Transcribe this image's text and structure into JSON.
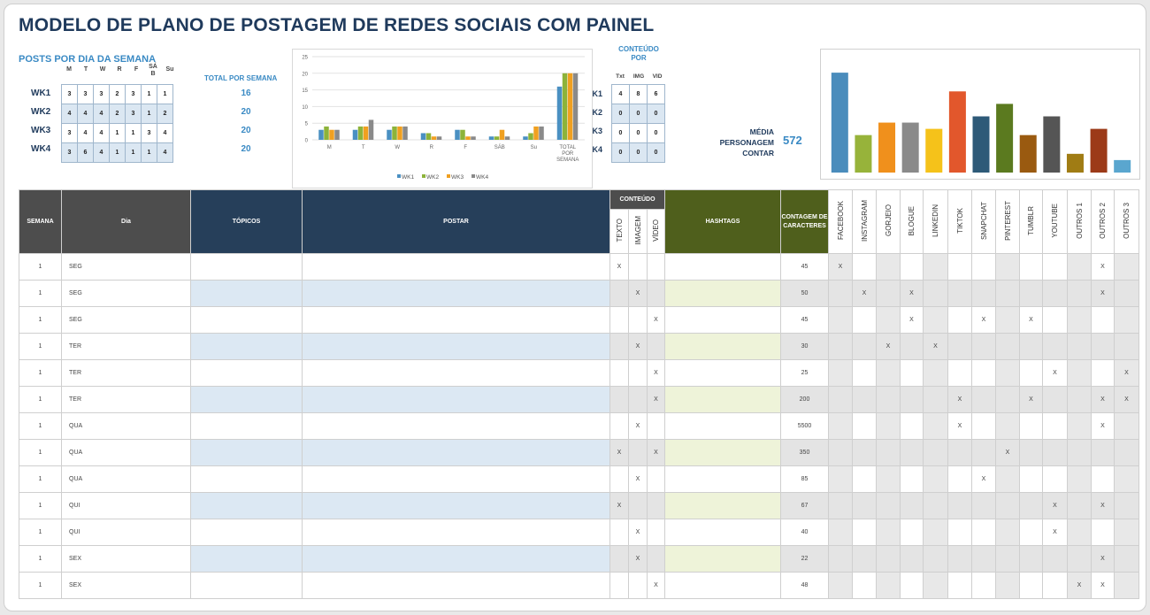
{
  "title": "MODELO DE PLANO DE POSTAGEM DE REDES SOCIAIS COM PAINEL",
  "posts_per_day": {
    "title": "POSTS POR DIA DA SEMANA",
    "days": [
      "M",
      "T",
      "W",
      "R",
      "F",
      "SÁB",
      "Su"
    ],
    "weeks": [
      {
        "label": "WK1",
        "values": [
          "3",
          "3",
          "3",
          "2",
          "3",
          "1",
          "1"
        ],
        "total": "16"
      },
      {
        "label": "WK2",
        "values": [
          "4",
          "4",
          "4",
          "2",
          "3",
          "1",
          "2"
        ],
        "total": "20"
      },
      {
        "label": "WK3",
        "values": [
          "3",
          "4",
          "4",
          "1",
          "1",
          "3",
          "4"
        ],
        "total": "20"
      },
      {
        "label": "WK4",
        "values": [
          "3",
          "6",
          "4",
          "1",
          "1",
          "1",
          "4"
        ],
        "total": "20"
      }
    ],
    "total_title": "TOTAL POR SEMANA"
  },
  "content_per": {
    "title": "CONTEÚDO POR",
    "heads": [
      "Txt",
      "IMG",
      "VID"
    ],
    "rows": [
      {
        "cut": "K1",
        "values": [
          "4",
          "8",
          "6"
        ]
      },
      {
        "cut": "K2",
        "values": [
          "0",
          "0",
          "0"
        ]
      },
      {
        "cut": "K3",
        "values": [
          "0",
          "0",
          "0"
        ]
      },
      {
        "cut": "K4",
        "values": [
          "0",
          "0",
          "0"
        ]
      }
    ]
  },
  "media": {
    "label": "MÉDIA PERSONAGEM CONTAR",
    "value": "572"
  },
  "chart_data": [
    {
      "type": "bar",
      "categories": [
        "M",
        "T",
        "W",
        "R",
        "F",
        "SÁB",
        "Su",
        "TOTAL POR SEMANA"
      ],
      "series": [
        {
          "name": "WK1",
          "values": [
            3,
            3,
            3,
            2,
            3,
            1,
            1,
            16
          ]
        },
        {
          "name": "WK2",
          "values": [
            4,
            4,
            4,
            2,
            3,
            1,
            2,
            20
          ]
        },
        {
          "name": "WK3",
          "values": [
            3,
            4,
            4,
            1,
            1,
            3,
            4,
            20
          ]
        },
        {
          "name": "WK4",
          "values": [
            3,
            6,
            4,
            1,
            1,
            1,
            4,
            20
          ]
        }
      ],
      "yticks": [
        "0",
        "5",
        "10",
        "15",
        "20",
        "25"
      ],
      "ylim": [
        0,
        25
      ],
      "legend": "bottom",
      "colors": [
        "#4a90c2",
        "#8db33a",
        "#f0a020",
        "#8a8a8a"
      ]
    },
    {
      "type": "bar",
      "categories": [
        "FACEBOOK",
        "INSTAGRAM",
        "GORJEIO",
        "BLOGUE",
        "LINKEDIN",
        "TIKTOK",
        "SNAPCHAT",
        "PINTEREST",
        "TUMBLR",
        "YOUTUBE",
        "OUTROS 1",
        "OUTROS 2",
        "OUTROS 3"
      ],
      "values": [
        8,
        3,
        4,
        4,
        3.5,
        6.5,
        4.5,
        5.5,
        3,
        4.5,
        1.5,
        3.5,
        1
      ],
      "ylim": [
        0,
        9
      ],
      "colors": [
        "#4a8cbc",
        "#97b33a",
        "#f0901c",
        "#8a8a8a",
        "#f5c21a",
        "#e2572c",
        "#2e5a78",
        "#5b7a1f",
        "#9a5a10",
        "#555555",
        "#a07c14",
        "#9c3a18",
        "#5aa6cf"
      ]
    }
  ],
  "table": {
    "headers": {
      "semana": "SEMANA",
      "dia": "Dia",
      "topicos": "TÓPICOS",
      "postar": "POSTAR",
      "conteudo": "CONTEÚDO",
      "texto": "TEXTO",
      "imagem": "IMAGEM",
      "video": "VÍDEO",
      "hashtags": "HASHTAGS",
      "contagem": "CONTAGEM DE CARACTERES"
    },
    "social": [
      "FACEBOOK",
      "INSTAGRAM",
      "GORJEIO",
      "BLOGUE",
      "LINKEDIN",
      "TIKTOK",
      "SNAPCHAT",
      "PINTEREST",
      "TUMBLR",
      "YOUTUBE",
      "OUTROS 1",
      "OUTROS 2",
      "OUTROS 3"
    ],
    "rows": [
      {
        "semana": "1",
        "dia": "SEG",
        "texto": "X",
        "imagem": "",
        "video": "",
        "count": "45",
        "soc": [
          "X",
          "",
          "",
          "",
          "",
          "",
          "",
          "",
          "",
          "",
          "",
          "X",
          ""
        ]
      },
      {
        "semana": "1",
        "dia": "SEG",
        "texto": "",
        "imagem": "X",
        "video": "",
        "count": "50",
        "soc": [
          "",
          "X",
          "",
          "X",
          "",
          "",
          "",
          "",
          "",
          "",
          "",
          "X",
          ""
        ]
      },
      {
        "semana": "1",
        "dia": "SEG",
        "texto": "",
        "imagem": "",
        "video": "X",
        "count": "45",
        "soc": [
          "",
          "",
          "",
          "X",
          "",
          "",
          "X",
          "",
          "X",
          "",
          "",
          "",
          ""
        ]
      },
      {
        "semana": "1",
        "dia": "TER",
        "texto": "",
        "imagem": "X",
        "video": "",
        "count": "30",
        "soc": [
          "",
          "",
          "X",
          "",
          "X",
          "",
          "",
          "",
          "",
          "",
          "",
          "",
          ""
        ]
      },
      {
        "semana": "1",
        "dia": "TER",
        "texto": "",
        "imagem": "",
        "video": "X",
        "count": "25",
        "soc": [
          "",
          "",
          "",
          "",
          "",
          "",
          "",
          "",
          "",
          "X",
          "",
          "",
          "X"
        ]
      },
      {
        "semana": "1",
        "dia": "TER",
        "texto": "",
        "imagem": "",
        "video": "X",
        "count": "200",
        "soc": [
          "",
          "",
          "",
          "",
          "",
          "X",
          "",
          "",
          "X",
          "",
          "",
          "X",
          "X"
        ]
      },
      {
        "semana": "1",
        "dia": "QUA",
        "texto": "",
        "imagem": "X",
        "video": "",
        "count": "5500",
        "soc": [
          "",
          "",
          "",
          "",
          "",
          "X",
          "",
          "",
          "",
          "",
          "",
          "X",
          ""
        ]
      },
      {
        "semana": "1",
        "dia": "QUA",
        "texto": "X",
        "imagem": "",
        "video": "X",
        "count": "350",
        "soc": [
          "",
          "",
          "",
          "",
          "",
          "",
          "",
          "X",
          "",
          "",
          "",
          "",
          ""
        ]
      },
      {
        "semana": "1",
        "dia": "QUA",
        "texto": "",
        "imagem": "X",
        "video": "",
        "count": "85",
        "soc": [
          "",
          "",
          "",
          "",
          "",
          "",
          "X",
          "",
          "",
          "",
          "",
          "",
          ""
        ]
      },
      {
        "semana": "1",
        "dia": "QUI",
        "texto": "X",
        "imagem": "",
        "video": "",
        "count": "67",
        "soc": [
          "",
          "",
          "",
          "",
          "",
          "",
          "",
          "",
          "",
          "X",
          "",
          "X",
          ""
        ]
      },
      {
        "semana": "1",
        "dia": "QUI",
        "texto": "",
        "imagem": "X",
        "video": "",
        "count": "40",
        "soc": [
          "",
          "",
          "",
          "",
          "",
          "",
          "",
          "",
          "",
          "X",
          "",
          "",
          ""
        ]
      },
      {
        "semana": "1",
        "dia": "SEX",
        "texto": "",
        "imagem": "X",
        "video": "",
        "count": "22",
        "soc": [
          "",
          "",
          "",
          "",
          "",
          "",
          "",
          "",
          "",
          "",
          "",
          "X",
          ""
        ]
      },
      {
        "semana": "1",
        "dia": "SEX",
        "texto": "",
        "imagem": "",
        "video": "X",
        "count": "48",
        "soc": [
          "",
          "",
          "",
          "",
          "",
          "",
          "",
          "",
          "",
          "",
          "X",
          "X",
          ""
        ]
      }
    ]
  }
}
